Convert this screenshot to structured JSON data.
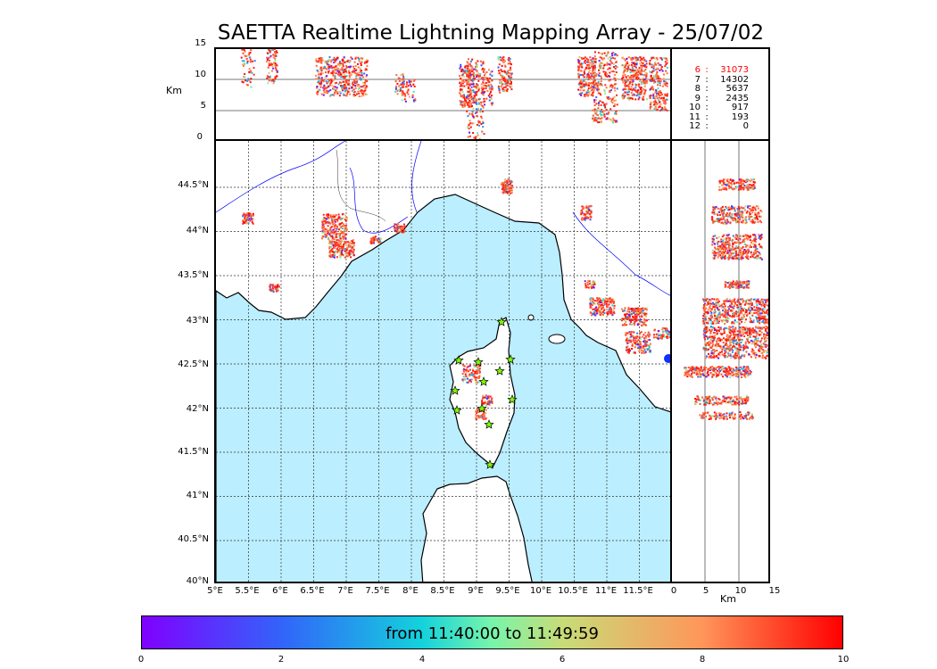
{
  "title": "SAETTA Realtime Lightning Mapping Array - 25/07/02",
  "altitude_panel": {
    "unit_label": "Km",
    "y_ticks": [
      "15",
      "10",
      "5",
      "0"
    ]
  },
  "legend": {
    "rows": [
      {
        "level": "6",
        "count": "31073",
        "highlight": true
      },
      {
        "level": "7",
        "count": "14302",
        "highlight": false
      },
      {
        "level": "8",
        "count": "5637",
        "highlight": false
      },
      {
        "level": "9",
        "count": "2435",
        "highlight": false
      },
      {
        "level": "10",
        "count": "917",
        "highlight": false
      },
      {
        "level": "11",
        "count": "193",
        "highlight": false
      },
      {
        "level": "12",
        "count": "0",
        "highlight": false
      }
    ],
    "highlight_color": "#ff0000"
  },
  "map": {
    "lat_labels": [
      "44.5°N",
      "44°N",
      "43.5°N",
      "43°N",
      "42.5°N",
      "42°N",
      "41.5°N",
      "41°N",
      "40.5°N",
      "40°N"
    ],
    "lon_labels": [
      "5°E",
      "5.5°E",
      "6°E",
      "6.5°E",
      "7°E",
      "7.5°E",
      "8°E",
      "8.5°E",
      "9°E",
      "9.5°E",
      "10°E",
      "10.5°E",
      "11°E",
      "11.5°E"
    ],
    "sea_color": "#bbeeff",
    "river_color": "#0000ff",
    "station_color": "#7cfc00"
  },
  "side_panel": {
    "x_ticks": [
      "0",
      "5",
      "10",
      "15"
    ],
    "unit_label": "Km"
  },
  "colorbar": {
    "label": "from 11:40:00 to 11:49:59",
    "ticks": [
      "0",
      "2",
      "4",
      "6",
      "8",
      "10"
    ],
    "range": [
      0,
      10
    ],
    "colormap": "rainbow"
  }
}
